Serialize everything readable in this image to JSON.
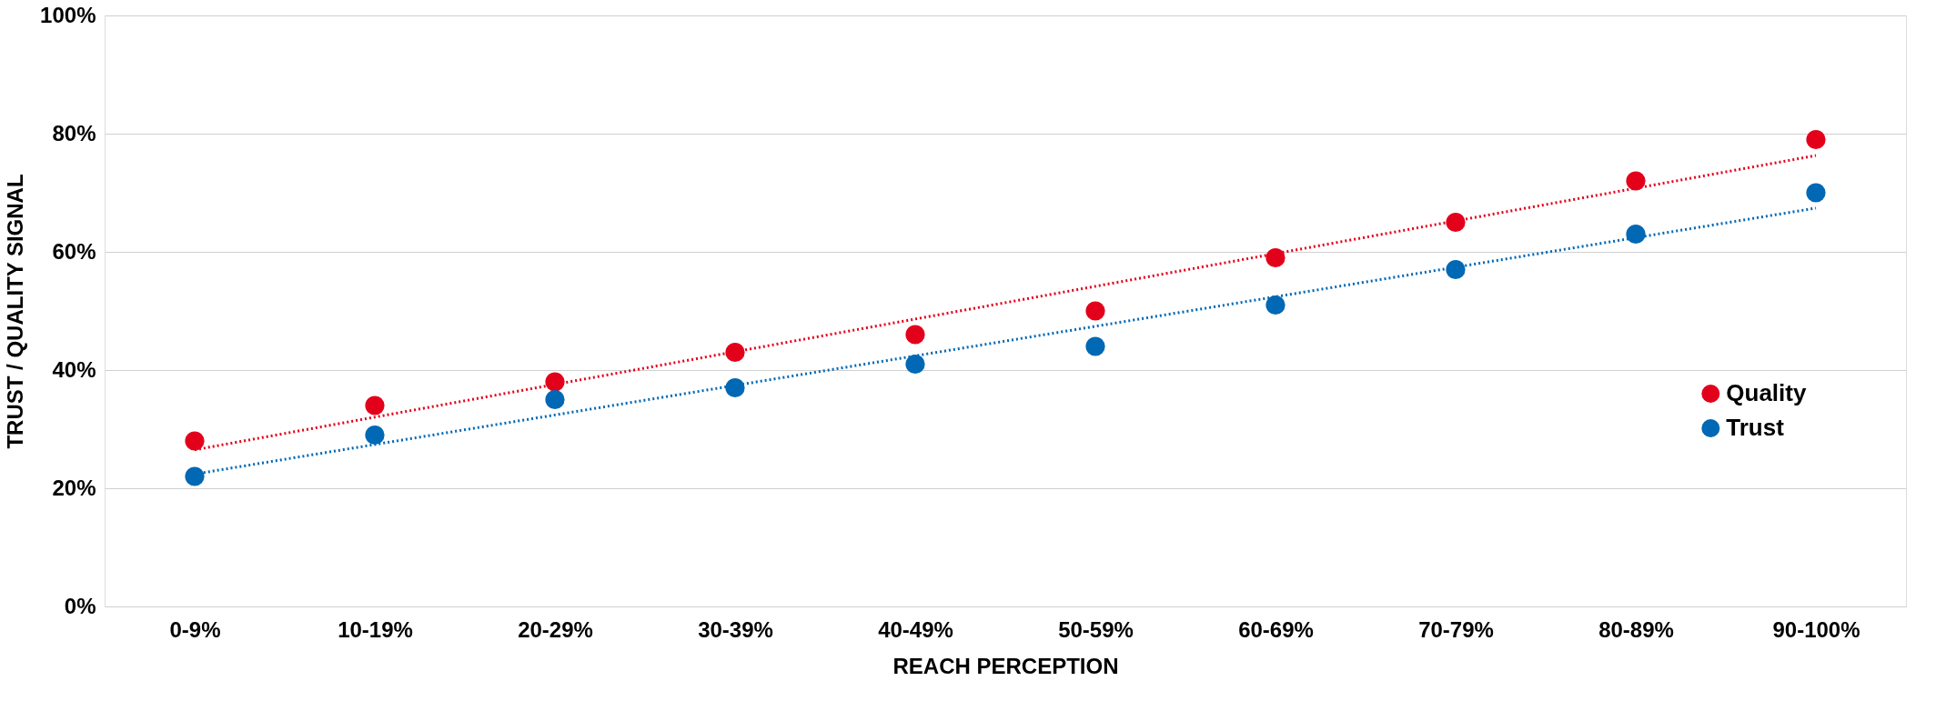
{
  "chart_data": {
    "type": "scatter",
    "xlabel": "REACH PERCEPTION",
    "ylabel": "TRUST / QUALITY SIGNAL",
    "categories": [
      "0-9%",
      "10-19%",
      "20-29%",
      "30-39%",
      "40-49%",
      "50-59%",
      "60-69%",
      "70-79%",
      "80-89%",
      "90-100%"
    ],
    "series": [
      {
        "name": "Quality",
        "color": "#e3001b",
        "marker": "circle",
        "values": [
          28,
          34,
          38,
          43,
          46,
          50,
          59,
          65,
          72,
          79
        ]
      },
      {
        "name": "Trust",
        "color": "#0068b4",
        "marker": "circle",
        "values": [
          22,
          29,
          35,
          37,
          41,
          44,
          51,
          57,
          63,
          70
        ]
      },
      {
        "type": "line",
        "line_style": "dotted",
        "marker": "none",
        "color": "#e3001b",
        "x": [
          "0-9%",
          "90-100%"
        ],
        "values": [
          26.5,
          76.3
        ]
      },
      {
        "type": "line",
        "line_style": "dotted",
        "marker": "none",
        "color": "#0068b4",
        "x": [
          "0-9%",
          "90-100%"
        ],
        "values": [
          22.4,
          67.4
        ]
      }
    ],
    "ylim": [
      0,
      100
    ],
    "yticks": [
      {
        "value": 0,
        "label": "0%"
      },
      {
        "value": 20,
        "label": "20%"
      },
      {
        "value": 40,
        "label": "40%"
      },
      {
        "value": 60,
        "label": "60%"
      },
      {
        "value": 80,
        "label": "80%"
      },
      {
        "value": 100,
        "label": "100%"
      }
    ],
    "grid": "y",
    "legend": "right"
  }
}
